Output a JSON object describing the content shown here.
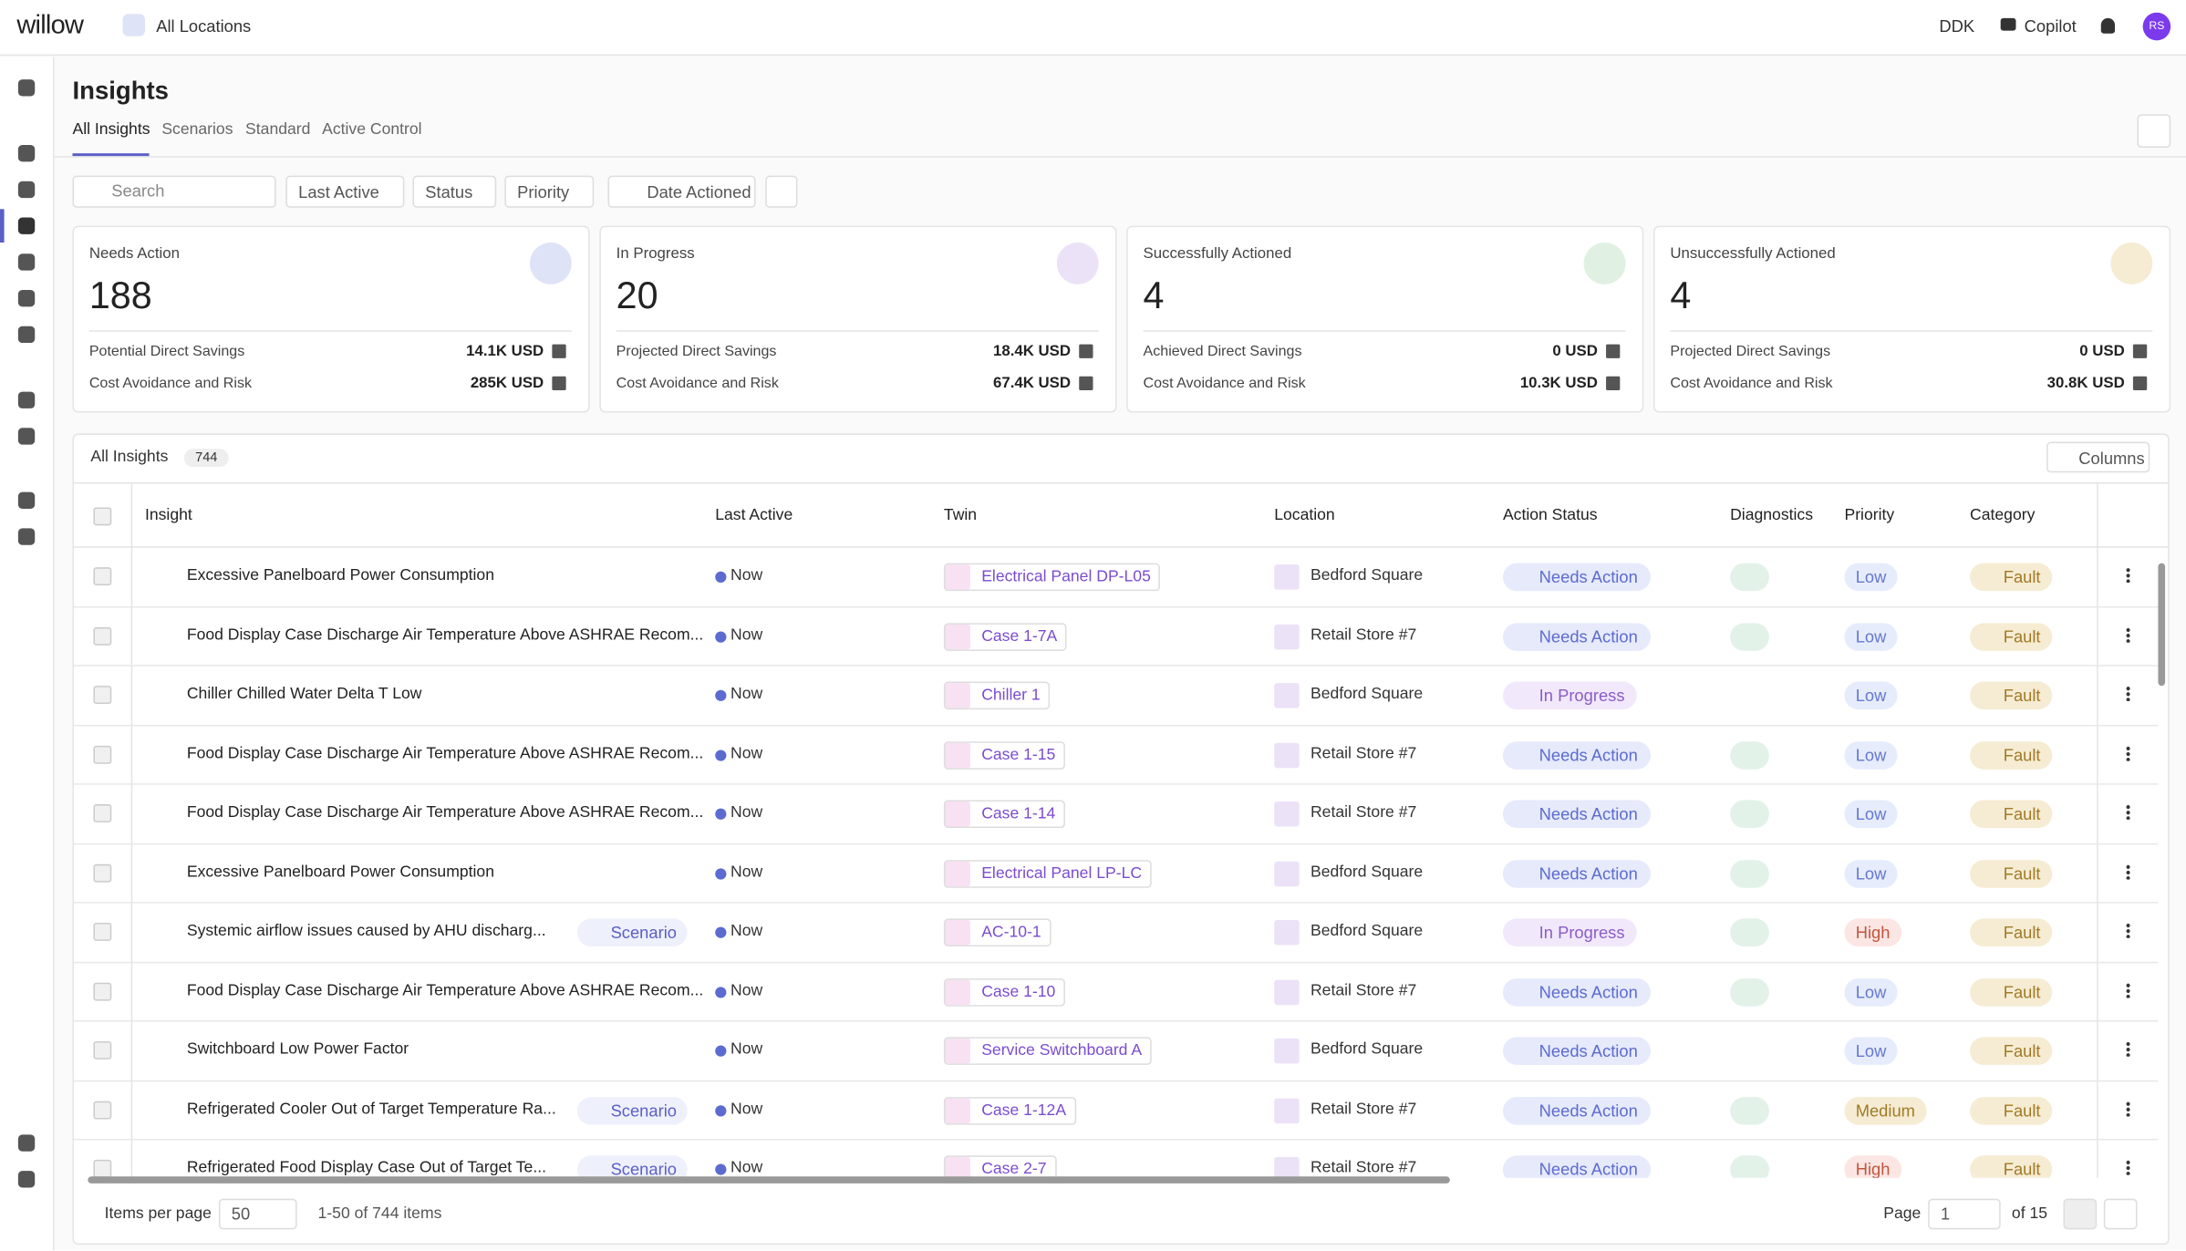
{
  "header": {
    "logo": "willow",
    "location": "All Locations",
    "site": "DDK",
    "copilot": "Copilot",
    "avatar": "RS"
  },
  "page": {
    "title": "Insights",
    "tabs": [
      "All Insights",
      "Scenarios",
      "Standard",
      "Active Control"
    ],
    "filters": {
      "search": "Search",
      "dropdowns": [
        "Last Active",
        "Status",
        "Priority"
      ],
      "date": "Date Actioned"
    }
  },
  "cards": [
    {
      "title": "Needs Action",
      "value": 188,
      "rows": [
        [
          "Potential Direct Savings",
          "14.1K USD"
        ],
        [
          "Cost Avoidance and Risk",
          "285K USD"
        ]
      ]
    },
    {
      "title": "In Progress",
      "value": 20,
      "rows": [
        [
          "Projected Direct Savings",
          "18.4K USD"
        ],
        [
          "Cost Avoidance and Risk",
          "67.4K USD"
        ]
      ]
    },
    {
      "title": "Successfully Actioned",
      "value": 4,
      "rows": [
        [
          "Achieved Direct Savings",
          "0 USD"
        ],
        [
          "Cost Avoidance and Risk",
          "10.3K USD"
        ]
      ]
    },
    {
      "title": "Unsuccessfully Actioned",
      "value": 4,
      "rows": [
        [
          "Projected Direct Savings",
          "0 USD"
        ],
        [
          "Cost Avoidance and Risk",
          "30.8K USD"
        ]
      ]
    }
  ],
  "table": {
    "title": "All Insights",
    "count": 744,
    "columns_button": "Columns",
    "headers": [
      "Insight",
      "Last Active",
      "Twin",
      "Location",
      "Action Status",
      "Diagnostics",
      "Priority",
      "Category"
    ],
    "rows": [
      {
        "insight": "Excessive Panelboard Power Consumption",
        "last_active": "Now",
        "twin": "Electrical Panel DP-L05",
        "location": "Bedford Square",
        "status": "Needs Action",
        "diagnostics": true,
        "priority": "Low",
        "category": "Fault"
      },
      {
        "insight": "Food Display Case Discharge Air Temperature Above ASHRAE Recom...",
        "last_active": "Now",
        "twin": "Case 1-7A",
        "location": "Retail Store #7",
        "status": "Needs Action",
        "diagnostics": true,
        "priority": "Low",
        "category": "Fault"
      },
      {
        "insight": "Chiller Chilled Water Delta T Low",
        "last_active": "Now",
        "twin": "Chiller 1",
        "location": "Bedford Square",
        "status": "In Progress",
        "diagnostics": false,
        "priority": "Low",
        "category": "Fault"
      },
      {
        "insight": "Food Display Case Discharge Air Temperature Above ASHRAE Recom...",
        "last_active": "Now",
        "twin": "Case 1-15",
        "location": "Retail Store #7",
        "status": "Needs Action",
        "diagnostics": true,
        "priority": "Low",
        "category": "Fault"
      },
      {
        "insight": "Food Display Case Discharge Air Temperature Above ASHRAE Recom...",
        "last_active": "Now",
        "twin": "Case 1-14",
        "location": "Retail Store #7",
        "status": "Needs Action",
        "diagnostics": true,
        "priority": "Low",
        "category": "Fault"
      },
      {
        "insight": "Excessive Panelboard Power Consumption",
        "last_active": "Now",
        "twin": "Electrical Panel LP-LC",
        "location": "Bedford Square",
        "status": "Needs Action",
        "diagnostics": true,
        "priority": "Low",
        "category": "Fault"
      },
      {
        "insight": "Systemic airflow issues caused by AHU discharg...",
        "scenario": "Scenario",
        "last_active": "Now",
        "twin": "AC-10-1",
        "location": "Bedford Square",
        "status": "In Progress",
        "diagnostics": true,
        "priority": "High",
        "category": "Fault"
      },
      {
        "insight": "Food Display Case Discharge Air Temperature Above ASHRAE Recom...",
        "last_active": "Now",
        "twin": "Case 1-10",
        "location": "Retail Store #7",
        "status": "Needs Action",
        "diagnostics": true,
        "priority": "Low",
        "category": "Fault"
      },
      {
        "insight": "Switchboard Low Power Factor",
        "last_active": "Now",
        "twin": "Service Switchboard A",
        "location": "Bedford Square",
        "status": "Needs Action",
        "diagnostics": false,
        "priority": "Low",
        "category": "Fault"
      },
      {
        "insight": "Refrigerated Cooler Out of Target Temperature Ra...",
        "scenario": "Scenario",
        "last_active": "Now",
        "twin": "Case 1-12A",
        "location": "Retail Store #7",
        "status": "Needs Action",
        "diagnostics": true,
        "priority": "Medium",
        "category": "Fault"
      },
      {
        "insight": "Refrigerated Food Display Case Out of Target Te...",
        "scenario": "Scenario",
        "last_active": "Now",
        "twin": "Case 2-7",
        "location": "Retail Store #7",
        "status": "Needs Action",
        "diagnostics": true,
        "priority": "High",
        "category": "Fault"
      }
    ]
  },
  "footer": {
    "items_label": "Items per page",
    "per_page": "50",
    "range": "1-50 of 744 items",
    "page_label": "Page",
    "page": "1",
    "of": "of 15"
  }
}
